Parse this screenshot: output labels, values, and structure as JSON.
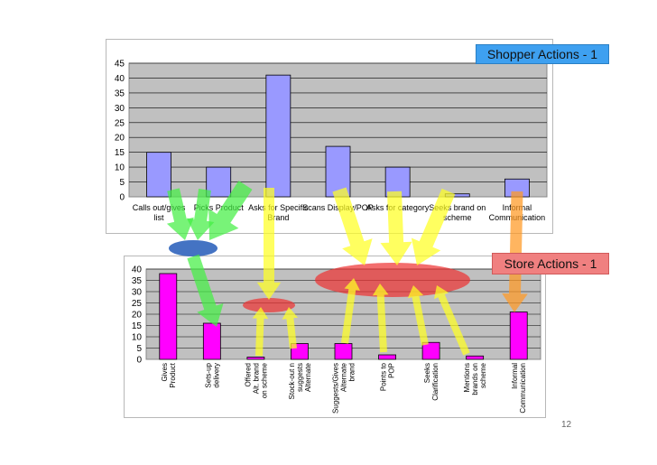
{
  "slide": {
    "page_number": "12"
  },
  "colors": {
    "plot_bg": "#c0c0c0",
    "bar_shopper": "#9999ff",
    "bar_store": "#ff00ff",
    "arrow_green": "#44ee44",
    "arrow_yellow": "#ffff22",
    "arrow_orange": "#ff9922",
    "ellipse_red": "#ee3030",
    "ellipse_blue": "#3a6cc0",
    "title1_bg": "#3ea0f0",
    "title2_bg": "#f08080"
  },
  "chart_data": [
    {
      "type": "bar",
      "title": "Shopper Actions - 1",
      "categories": [
        "Calls out/gives list",
        "Picks Product",
        "Asks for Specific Brand",
        "Scans Display/POP",
        "Asks for category",
        "Seeks brand on scheme",
        "Informal Communication"
      ],
      "values": [
        15,
        10,
        41,
        17,
        10,
        1,
        6
      ],
      "ylim": [
        0,
        45
      ],
      "yticks": [
        0,
        5,
        10,
        15,
        20,
        25,
        30,
        35,
        40,
        45
      ],
      "grid": true,
      "xlabel": "",
      "ylabel": ""
    },
    {
      "type": "bar",
      "title": "Store Actions - 1",
      "categories": [
        "Gives Product",
        "Sets-up delivery",
        "Offered Alt. brand on scheme",
        "Stock-out n suggests Alternate",
        "Suggests/Gives Alternate brand",
        "Points to POP",
        "Seeks Clarification",
        "Mentions brands on scheme",
        "Informal Communication"
      ],
      "values": [
        38,
        16,
        1,
        7,
        7,
        2,
        7.5,
        1.5,
        21
      ],
      "ylim": [
        0,
        40
      ],
      "yticks": [
        0,
        5,
        10,
        15,
        20,
        25,
        30,
        35,
        40
      ],
      "grid": true,
      "xlabel": "",
      "ylabel": ""
    }
  ]
}
